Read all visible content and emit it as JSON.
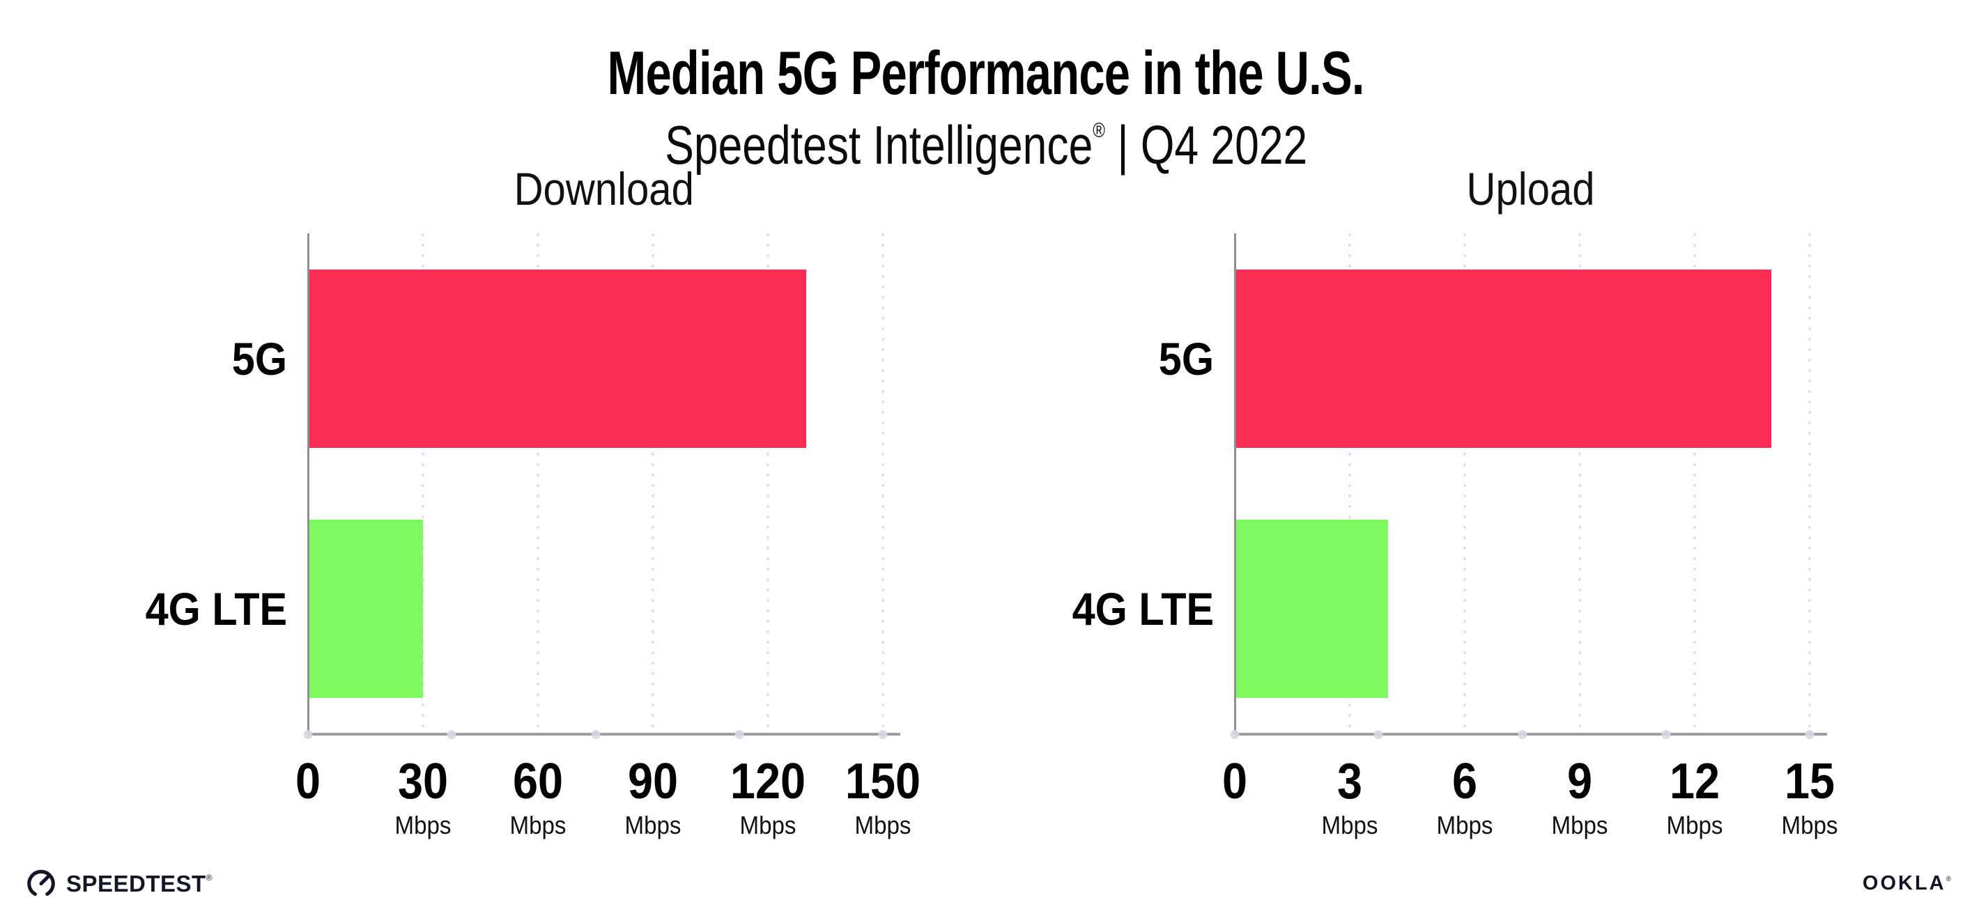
{
  "header": {
    "title": "Median 5G Performance in the U.S.",
    "subtitle_brand": "Speedtest Intelligence",
    "subtitle_reg": "®",
    "subtitle_rest": " | Q4 2022"
  },
  "chart_data": [
    {
      "type": "bar",
      "orientation": "horizontal",
      "title": "Download",
      "categories": [
        "5G",
        "4G LTE"
      ],
      "values": [
        130,
        30
      ],
      "unit": "Mbps",
      "xlim": [
        0,
        150
      ],
      "xticks": [
        0,
        30,
        60,
        90,
        120,
        150
      ],
      "bar_colors": [
        "#fc2d55",
        "#7ffa61"
      ],
      "grid": "dotted-vertical",
      "legend": "none"
    },
    {
      "type": "bar",
      "orientation": "horizontal",
      "title": "Upload",
      "categories": [
        "5G",
        "4G LTE"
      ],
      "values": [
        14,
        4
      ],
      "unit": "Mbps",
      "xlim": [
        0,
        15
      ],
      "xticks": [
        0,
        3,
        6,
        9,
        12,
        15
      ],
      "bar_colors": [
        "#fc2d55",
        "#7ffa61"
      ],
      "grid": "dotted-vertical",
      "legend": "none"
    }
  ],
  "footer": {
    "speedtest_label": "SPEEDTEST",
    "speedtest_reg": "®",
    "ookla_label": "OOKLA",
    "ookla_reg": "®"
  },
  "colors": {
    "bar_5g": "#fc2d55",
    "bar_4g_lte": "#7ffa61",
    "gridline": "#e0e0ea",
    "axis_line": "#9e9e9e",
    "axis_spine": "#8f8f8f",
    "text": "#000000",
    "logo_ink": "#141526"
  }
}
